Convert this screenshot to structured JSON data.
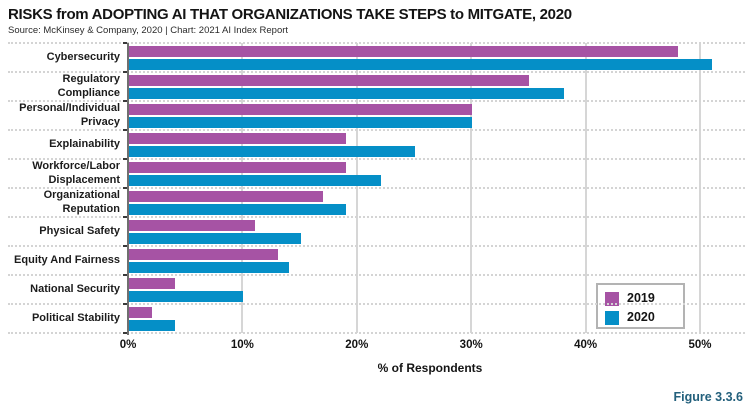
{
  "header": {
    "title": "RISKS from ADOPTING AI THAT ORGANIZATIONS TAKE STEPS to MITGATE, 2020",
    "source": "Source: McKinsey & Company, 2020 | Chart: 2021 AI Index Report"
  },
  "figure_label": "Figure 3.3.6",
  "legend": {
    "position": "lower right inside plot",
    "items": [
      {
        "label": "2019",
        "color": "#a653a4"
      },
      {
        "label": "2020",
        "color": "#058fc7"
      }
    ]
  },
  "chart_data": {
    "type": "bar",
    "orientation": "horizontal",
    "title": "RISKS from ADOPTING AI THAT ORGANIZATIONS TAKE STEPS to MITGATE, 2020",
    "xlabel": "% of Respondents",
    "ylabel": "",
    "categories": [
      "Cybersecurity",
      "Regulatory Compliance",
      "Personal/Individual Privacy",
      "Explainability",
      "Workforce/Labor Displacement",
      "Organizational Reputation",
      "Physical Safety",
      "Equity And Fairness",
      "National Security",
      "Political Stability"
    ],
    "series": [
      {
        "name": "2019",
        "color": "#a653a4",
        "values": [
          48,
          35,
          30,
          19,
          19,
          17,
          11,
          13,
          4,
          2
        ]
      },
      {
        "name": "2020",
        "color": "#058fc7",
        "values": [
          51,
          38,
          30,
          25,
          22,
          19,
          15,
          14,
          10,
          4
        ]
      }
    ],
    "xlim": [
      0,
      53.9
    ],
    "xticks": [
      0,
      10,
      20,
      30,
      40,
      50
    ],
    "xtick_labels": [
      "0%",
      "10%",
      "20%",
      "30%",
      "40%",
      "50%"
    ],
    "grid": "solid vertical gridlines at each 10%; dotted horizontal separators between category rows",
    "legend_entries": [
      "2019",
      "2020"
    ]
  }
}
